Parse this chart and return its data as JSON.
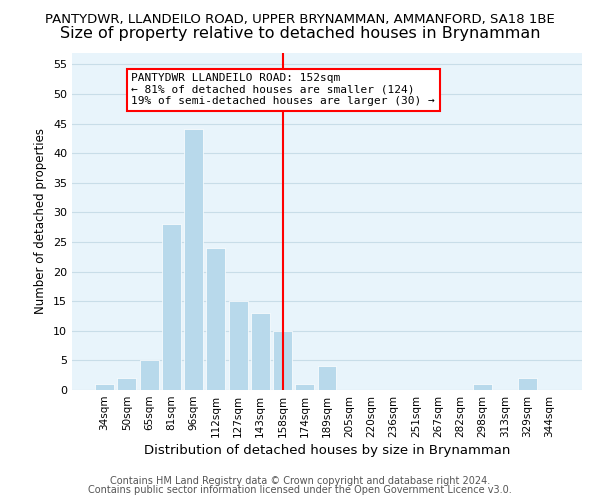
{
  "title": "PANTYDWR, LLANDEILO ROAD, UPPER BRYNAMMAN, AMMANFORD, SA18 1BE",
  "subtitle": "Size of property relative to detached houses in Brynamman",
  "xlabel": "Distribution of detached houses by size in Brynamman",
  "ylabel": "Number of detached properties",
  "bar_labels": [
    "34sqm",
    "50sqm",
    "65sqm",
    "81sqm",
    "96sqm",
    "112sqm",
    "127sqm",
    "143sqm",
    "158sqm",
    "174sqm",
    "189sqm",
    "205sqm",
    "220sqm",
    "236sqm",
    "251sqm",
    "267sqm",
    "282sqm",
    "298sqm",
    "313sqm",
    "329sqm",
    "344sqm"
  ],
  "bar_values": [
    1,
    2,
    5,
    28,
    44,
    24,
    15,
    13,
    10,
    1,
    4,
    0,
    0,
    0,
    0,
    0,
    0,
    1,
    0,
    2,
    0
  ],
  "bar_color": "#b8d9eb",
  "vline_index": 8,
  "vline_color": "red",
  "ylim": [
    0,
    57
  ],
  "yticks": [
    0,
    5,
    10,
    15,
    20,
    25,
    30,
    35,
    40,
    45,
    50,
    55
  ],
  "annotation_title": "PANTYDWR LLANDEILO ROAD: 152sqm",
  "annotation_line1": "← 81% of detached houses are smaller (124)",
  "annotation_line2": "19% of semi-detached houses are larger (30) →",
  "footer1": "Contains HM Land Registry data © Crown copyright and database right 2024.",
  "footer2": "Contains public sector information licensed under the Open Government Licence v3.0.",
  "bg_axes": "#e8f4fb",
  "bg_fig": "#ffffff",
  "grid_color": "#c8dde8",
  "title_fontsize": 9.5,
  "subtitle_fontsize": 11.5,
  "footer_fontsize": 7.0
}
